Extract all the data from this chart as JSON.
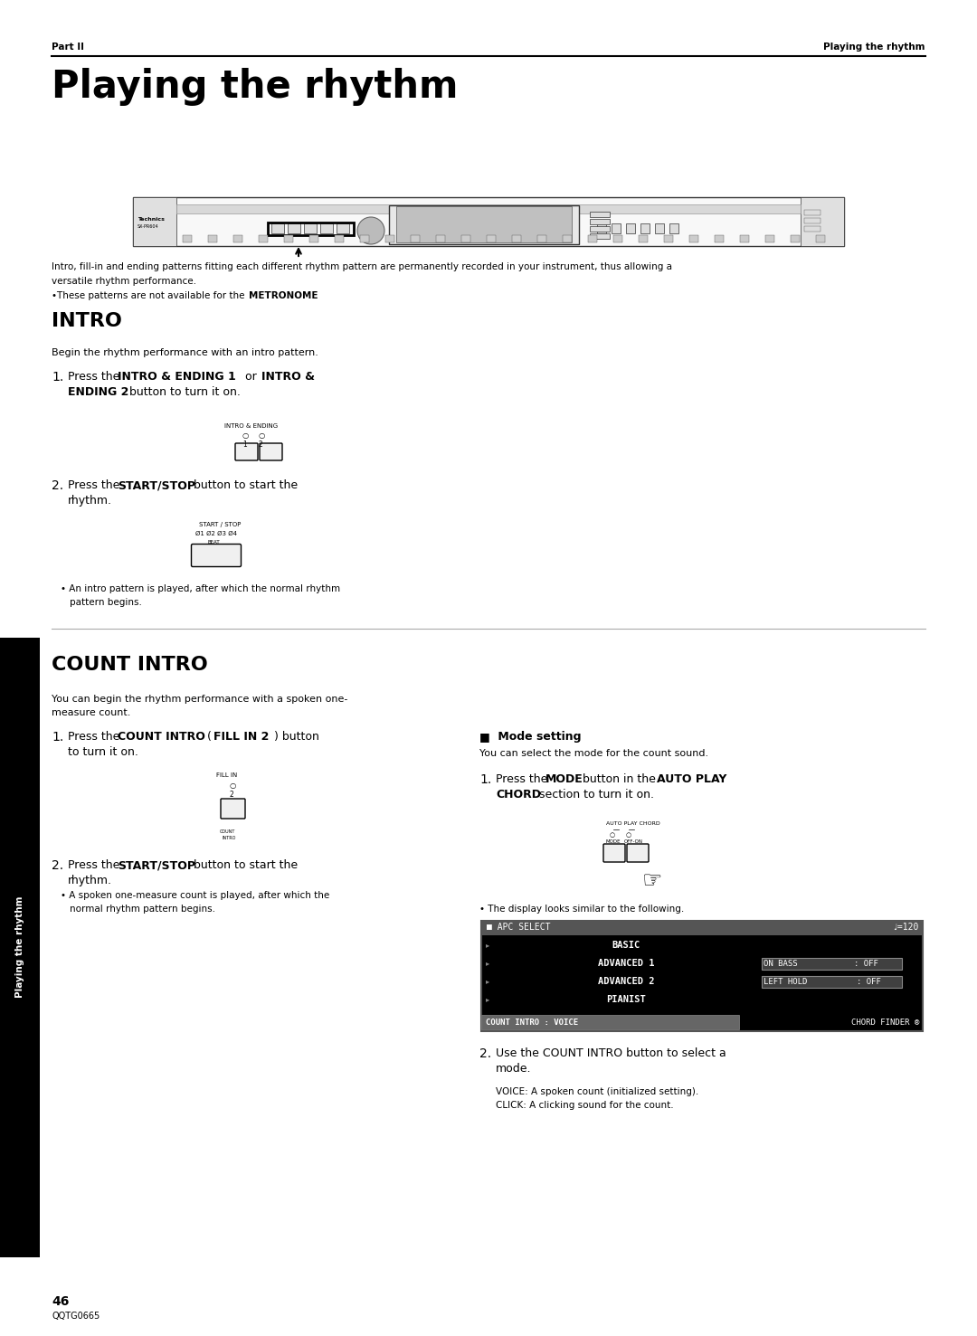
{
  "page_width": 10.8,
  "page_height": 14.77,
  "bg_color": "#ffffff",
  "header_left": "Part II",
  "header_right": "Playing the rhythm",
  "main_title": "Playing the rhythm",
  "intro_para1": "Intro, fill-in and ending patterns fitting each different rhythm pattern are permanently recorded in your instrument, thus allowing a",
  "intro_para2": "versatile rhythm performance.",
  "intro_bullet1": "•These patterns are not available for the ",
  "intro_bullet_bold": "METRONOME",
  "intro_bullet2": ".",
  "section1_title": "INTRO",
  "section1_desc": "Begin the rhythm performance with an intro pattern.",
  "section2_title": "COUNT INTRO",
  "section2_desc1": "You can begin the rhythm performance with a spoken one-",
  "section2_desc2": "measure count.",
  "bullet_intro": "• An intro pattern is played, after which the normal rhythm",
  "bullet_intro2": "pattern begins.",
  "count_bullet1": "• A spoken one-measure count is played, after which the",
  "count_bullet2": "normal rhythm pattern begins.",
  "mode_desc": "You can select the mode for the count sound.",
  "mode_display_note": "• The display looks similar to the following.",
  "mode_voice": "VOICE: A spoken count (initialized setting).",
  "mode_click": "CLICK: A clicking sound for the count.",
  "footer_page": "46",
  "footer_code": "QQTG0665",
  "sidebar_text": "Playing the rhythm"
}
